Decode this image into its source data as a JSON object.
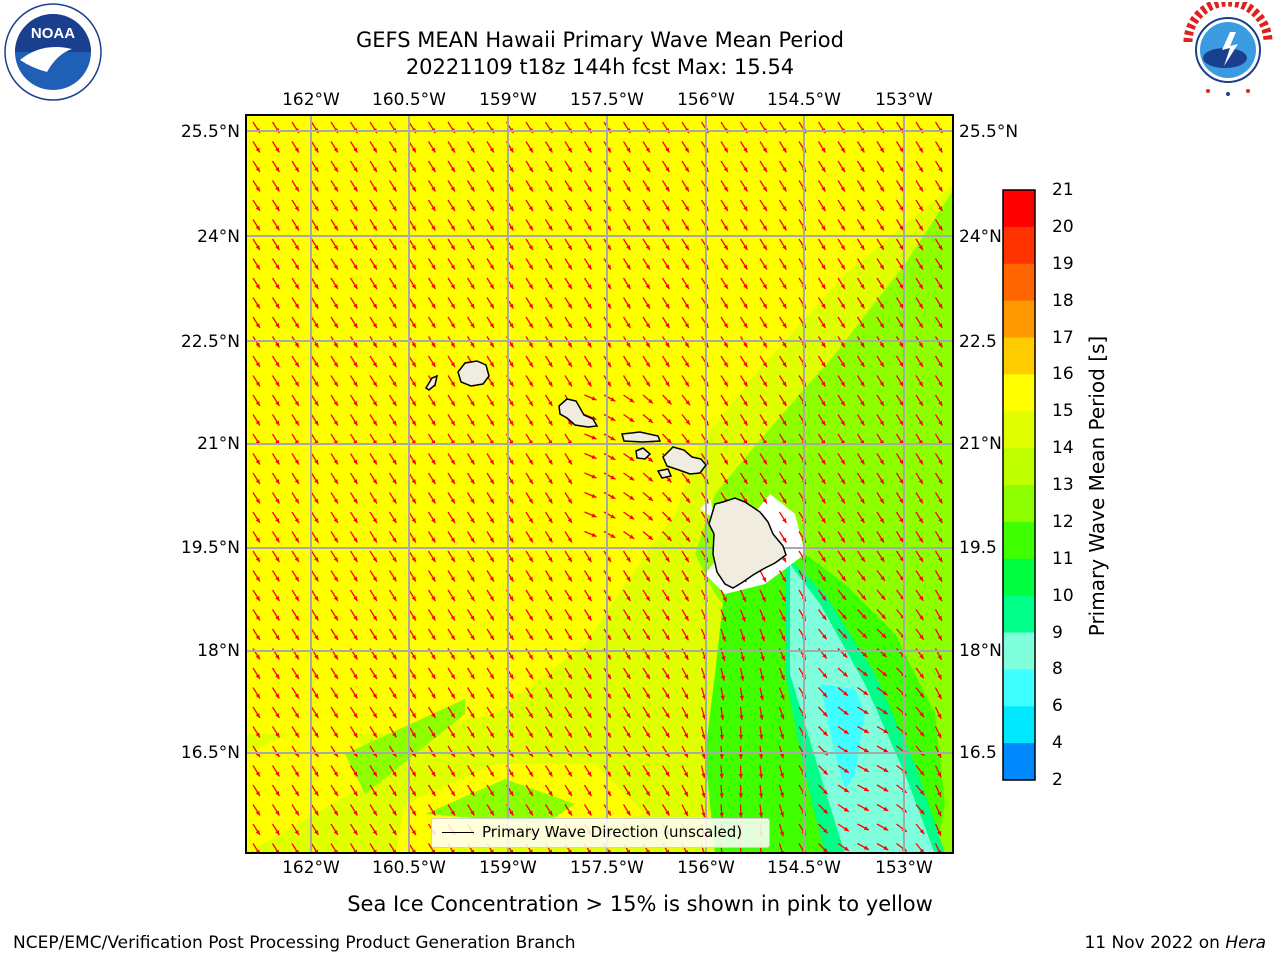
{
  "title": {
    "line1": "GEFS MEAN Hawaii Primary Wave Mean Period",
    "line2": "20221109 t18z 144h fcst   Max: 15.54"
  },
  "logos": {
    "noaa": {
      "text": "NOAA",
      "ring_text": "NATIONAL OCEANIC AND ATMOSPHERIC ADMINISTRATION · U.S. DEPARTMENT OF COMMERCE"
    },
    "nws": {
      "ring_text": "NATIONAL WEATHER SERVICE"
    }
  },
  "map": {
    "lon_labels": [
      "162°W",
      "160.5°W",
      "159°W",
      "157.5°W",
      "156°W",
      "154.5°W",
      "153°W"
    ],
    "lat_labels": [
      "25.5°N",
      "24°N",
      "22.5°N",
      "21°N",
      "19.5°N",
      "18°N",
      "16.5°N"
    ],
    "lat_labels_right": [
      "25.5°N",
      "24°N",
      "22.5",
      "21°N",
      "19.5",
      "18°N",
      "16.5"
    ],
    "colors": {
      "yellow": "#ffff00",
      "light_green": "#e0ff00",
      "green": "#8dff00",
      "arrow": "#ff0000",
      "land": "#f0ece0",
      "grid": "#a8a8a8"
    }
  },
  "legend": {
    "label": "Primary Wave Direction (unscaled)"
  },
  "colorbar": {
    "label": "Primary Wave Mean Period [s]",
    "ticks": [
      "21",
      "20",
      "19",
      "18",
      "17",
      "16",
      "15",
      "14",
      "13",
      "12",
      "11",
      "10",
      "9",
      "8",
      "6",
      "4",
      "2"
    ],
    "colors": [
      "#ff0000",
      "#ff3300",
      "#ff6600",
      "#ff9900",
      "#ffcc00",
      "#ffff00",
      "#e0ff00",
      "#c0ff00",
      "#8dff00",
      "#40ff00",
      "#00ff40",
      "#00ff88",
      "#80ffdd",
      "#40ffff",
      "#00e8ff",
      "#0088ff",
      "#0000ff"
    ]
  },
  "note": "Sea Ice Concentration > 15% is shown in pink to yellow",
  "footer": {
    "left": "NCEP/EMC/Verification Post Processing Product Generation Branch",
    "right_prefix": "11 Nov 2022 on ",
    "right_host": "Hera"
  }
}
